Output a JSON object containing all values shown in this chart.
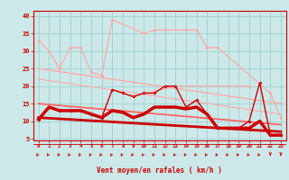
{
  "x": [
    0,
    1,
    2,
    3,
    4,
    5,
    6,
    7,
    8,
    9,
    10,
    11,
    12,
    13,
    14,
    15,
    16,
    17,
    18,
    19,
    20,
    21,
    22,
    23
  ],
  "rafales_top": [
    33,
    30,
    25,
    31,
    31,
    24,
    23,
    39,
    null,
    null,
    35,
    36,
    36,
    null,
    36,
    36,
    31,
    31,
    null,
    null,
    null,
    null,
    18,
    11
  ],
  "rafales_mid": [
    null,
    null,
    null,
    null,
    null,
    null,
    null,
    null,
    18,
    17,
    null,
    null,
    null,
    20,
    null,
    null,
    null,
    null,
    null,
    null,
    20,
    null,
    null,
    null
  ],
  "wind_max": [
    10.5,
    14,
    13,
    13,
    13,
    12,
    11,
    19,
    18,
    17,
    18,
    18,
    20,
    20,
    14,
    16,
    12,
    8,
    8,
    8,
    10,
    21,
    6,
    6
  ],
  "wind_mean": [
    10.5,
    14,
    13,
    13,
    13,
    12,
    11,
    13,
    12.5,
    11,
    12,
    14,
    14,
    14,
    13.5,
    14,
    12,
    8,
    8,
    8,
    8,
    10,
    6,
    6
  ],
  "trend1_y0": 25,
  "trend1_y1": 15,
  "trend2_y0": 22,
  "trend2_y1": 12,
  "trend3_y0": 15,
  "trend3_y1": 9,
  "trend4_y0": 11,
  "trend4_y1": 7,
  "bg_color": "#cce8e8",
  "grid_color": "#99cccc",
  "dark_red": "#cc0000",
  "light_pink": "#ffaaaa",
  "mid_red": "#ff6666",
  "xlabel": "Vent moyen/en rafales ( km/h )",
  "yticks": [
    5,
    10,
    15,
    20,
    25,
    30,
    35,
    40
  ],
  "xlim": [
    -0.5,
    23.5
  ],
  "ylim": [
    4.5,
    41.5
  ]
}
